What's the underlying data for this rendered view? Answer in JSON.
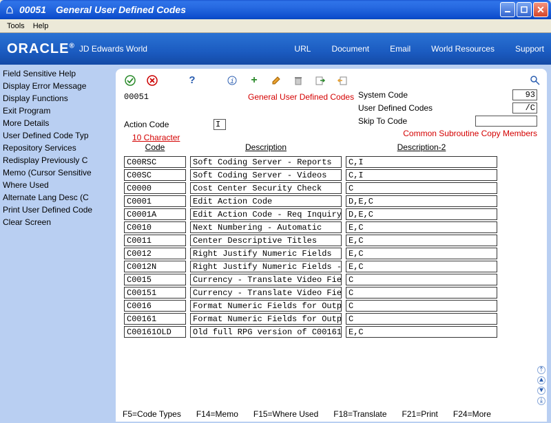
{
  "window": {
    "code": "00051",
    "title": "General User Defined Codes"
  },
  "menubar": [
    "Tools",
    "Help"
  ],
  "banner": {
    "brand": "ORACLE",
    "subbrand": "JD Edwards World",
    "links": [
      "URL",
      "Document",
      "Email",
      "World Resources",
      "Support"
    ]
  },
  "sidebar": {
    "items": [
      "Field Sensitive Help",
      "Display Error Message",
      "Display Functions",
      "Exit Program",
      "More Details",
      "User Defined Code Typ",
      "Repository Services",
      "Redisplay Previously C",
      "Memo (Cursor Sensitive",
      "Where Used",
      "Alternate Lang Desc  (C",
      "Print User Defined Code",
      "Clear Screen"
    ]
  },
  "header": {
    "program_code": "00051",
    "screen_title": "General User Defined Codes",
    "action_code_label": "Action Code",
    "action_code_value": "I",
    "system_code_label": "System Code",
    "system_code_value": "93",
    "udc_label": "User Defined Codes",
    "udc_value": "/C",
    "skip_to_label": "Skip To Code",
    "skip_to_value": "",
    "subroutine_text": "Common Subroutine Copy Members",
    "char_heading": "10 Character"
  },
  "columns": {
    "code": "Code",
    "desc": "Description",
    "desc2": "Description-2"
  },
  "rows": [
    {
      "code": "C00RSC",
      "desc": "Soft Coding Server - Reports",
      "desc2": "C,I"
    },
    {
      "code": "C00SC",
      "desc": "Soft Coding Server - Videos",
      "desc2": "C,I"
    },
    {
      "code": "C0000",
      "desc": "Cost Center Security Check",
      "desc2": "C"
    },
    {
      "code": "C0001",
      "desc": "Edit Action Code",
      "desc2": "D,E,C"
    },
    {
      "code": "C0001A",
      "desc": "Edit Action Code - Req Inquiry",
      "desc2": "D,E,C"
    },
    {
      "code": "C0010",
      "desc": "Next Numbering - Automatic",
      "desc2": "E,C"
    },
    {
      "code": "C0011",
      "desc": "Center Descriptive Titles",
      "desc2": "E,C"
    },
    {
      "code": "C0012",
      "desc": "Right Justify Numeric Fields",
      "desc2": "E,C"
    },
    {
      "code": "C0012N",
      "desc": "Right Justify Numeric Fields -",
      "desc2": "E,C"
    },
    {
      "code": "C0015",
      "desc": "Currency - Translate Video Fie",
      "desc2": "C"
    },
    {
      "code": "C00151",
      "desc": "Currency - Translate Video Fie",
      "desc2": "C"
    },
    {
      "code": "C0016",
      "desc": "Format Numeric Fields for Outp",
      "desc2": "C"
    },
    {
      "code": "C00161",
      "desc": "Format Numeric Fields for Outp",
      "desc2": "C"
    },
    {
      "code": "C00161OLD",
      "desc": "Old full RPG version of C00161",
      "desc2": "E,C"
    }
  ],
  "fkeys": [
    "F5=Code Types",
    "F14=Memo",
    "F15=Where Used",
    "F18=Translate",
    "F21=Print",
    "F24=More"
  ],
  "colors": {
    "banner_bg": "#1b5bc0",
    "sidebar_bg": "#b9cff2",
    "red": "#d40000"
  }
}
